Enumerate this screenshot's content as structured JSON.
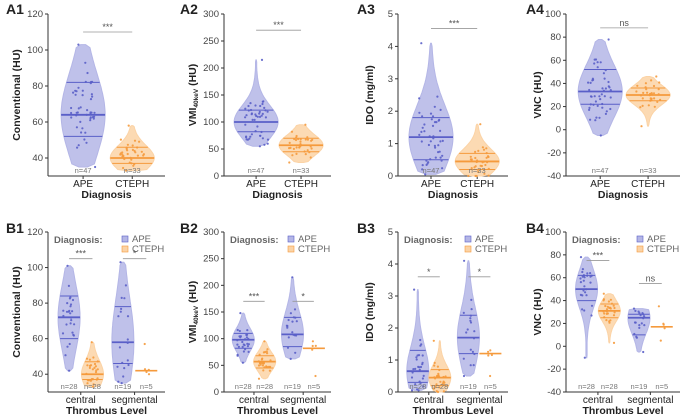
{
  "colors": {
    "ape": "#5a5fc8",
    "ape_fill": "#b4b6e6",
    "cteph": "#f59a3c",
    "cteph_fill": "#fbd3a6",
    "axis": "#333333",
    "text": "#222222",
    "sig": "#999999"
  },
  "legend": {
    "title": "Diagnosis:",
    "ape": "APE",
    "cteph": "CTEPH"
  },
  "chart_data": [
    {
      "id": "A1",
      "type": "violin",
      "ylabel": "Conventional (HU)",
      "xlabel": "Diagnosis",
      "ylim": [
        30,
        120
      ],
      "yticks": [
        40,
        60,
        80,
        100,
        120
      ],
      "categories": [
        "APE",
        "CTEPH"
      ],
      "groups": [
        {
          "label": "APE",
          "series": "ape",
          "min": 35,
          "max": 103,
          "q1": 52,
          "median": 64,
          "q3": 82,
          "n_label": "n=47"
        },
        {
          "label": "CTEPH",
          "series": "cteph",
          "min": 33,
          "max": 58,
          "q1": 37,
          "median": 40,
          "q3": 46,
          "n_label": "n=33"
        }
      ],
      "sig": [
        {
          "from": 0,
          "to": 1,
          "label": "***",
          "y": 110
        }
      ]
    },
    {
      "id": "A2",
      "type": "violin",
      "ylabel": "VMI40keV (HU)",
      "xlabel": "Diagnosis",
      "ylim": [
        0,
        300
      ],
      "yticks": [
        0,
        50,
        100,
        150,
        200,
        250,
        300
      ],
      "categories": [
        "APE",
        "CTEPH"
      ],
      "groups": [
        {
          "label": "APE",
          "series": "ape",
          "min": 55,
          "max": 215,
          "q1": 82,
          "median": 100,
          "q3": 122,
          "n_label": "n=47"
        },
        {
          "label": "CTEPH",
          "series": "cteph",
          "min": 25,
          "max": 95,
          "q1": 45,
          "median": 57,
          "q3": 70,
          "n_label": "n=33"
        }
      ],
      "sig": [
        {
          "from": 0,
          "to": 1,
          "label": "***",
          "y": 270
        }
      ]
    },
    {
      "id": "A3",
      "type": "violin",
      "ylabel": "IDO (mg/ml)",
      "xlabel": "Diagnosis",
      "ylim": [
        0,
        5
      ],
      "yticks": [
        0,
        1,
        2,
        3,
        4,
        5
      ],
      "categories": [
        "APE",
        "CTEPH"
      ],
      "groups": [
        {
          "label": "APE",
          "series": "ape",
          "min": 0.05,
          "max": 4.1,
          "q1": 0.5,
          "median": 1.2,
          "q3": 1.8,
          "n_label": "n=47"
        },
        {
          "label": "CTEPH",
          "series": "cteph",
          "min": 0.0,
          "max": 1.6,
          "q1": 0.2,
          "median": 0.45,
          "q3": 0.7,
          "n_label": "n=33"
        }
      ],
      "sig": [
        {
          "from": 0,
          "to": 1,
          "label": "***",
          "y": 4.55
        }
      ]
    },
    {
      "id": "A4",
      "type": "violin",
      "ylabel": "VNC (HU)",
      "xlabel": "Diagnosis",
      "ylim": [
        -40,
        100
      ],
      "yticks": [
        -40,
        -20,
        0,
        20,
        40,
        60,
        80,
        100
      ],
      "categories": [
        "APE",
        "CTEPH"
      ],
      "groups": [
        {
          "label": "APE",
          "series": "ape",
          "min": -5,
          "max": 78,
          "q1": 22,
          "median": 33,
          "q3": 52,
          "n_label": "n=47"
        },
        {
          "label": "CTEPH",
          "series": "cteph",
          "min": 3,
          "max": 46,
          "q1": 25,
          "median": 30,
          "q3": 36,
          "n_label": "n=33"
        }
      ],
      "sig": [
        {
          "from": 0,
          "to": 1,
          "label": "ns",
          "y": 88
        }
      ]
    },
    {
      "id": "B1",
      "type": "violin",
      "ylabel": "Conventional (HU)",
      "xlabel": "Thrombus Level",
      "ylim": [
        30,
        120
      ],
      "yticks": [
        40,
        60,
        80,
        100,
        120
      ],
      "categories": [
        "central",
        "segmental"
      ],
      "groups": [
        {
          "label": "central",
          "series": "ape",
          "min": 42,
          "max": 101,
          "q1": 60,
          "median": 72,
          "q3": 84,
          "n_label": "n=28"
        },
        {
          "label": "central",
          "series": "cteph",
          "min": 33,
          "max": 58,
          "q1": 37,
          "median": 40,
          "q3": 47,
          "n_label": "n=28"
        },
        {
          "label": "segmental",
          "series": "ape",
          "min": 35,
          "max": 103,
          "q1": 46,
          "median": 58,
          "q3": 78,
          "n_label": "n=19"
        },
        {
          "label": "segmental",
          "series": "cteph",
          "min": 40,
          "max": 57,
          "q1": 42,
          "median": 42,
          "q3": 42,
          "n_label": "n=5",
          "flat": true
        }
      ],
      "sig": [
        {
          "from": 0,
          "to": 1,
          "label": "***",
          "y": 105
        },
        {
          "from": 2,
          "to": 3,
          "label": "*",
          "y": 105
        }
      ]
    },
    {
      "id": "B2",
      "type": "violin",
      "ylabel": "VMI40keV (HU)",
      "xlabel": "Thrombus Level",
      "ylim": [
        0,
        300
      ],
      "yticks": [
        0,
        50,
        100,
        150,
        200,
        250,
        300
      ],
      "categories": [
        "central",
        "segmental"
      ],
      "groups": [
        {
          "label": "central",
          "series": "ape",
          "min": 55,
          "max": 148,
          "q1": 82,
          "median": 98,
          "q3": 110,
          "n_label": "n=28"
        },
        {
          "label": "central",
          "series": "cteph",
          "min": 25,
          "max": 95,
          "q1": 45,
          "median": 57,
          "q3": 68,
          "n_label": "n=28"
        },
        {
          "label": "segmental",
          "series": "ape",
          "min": 62,
          "max": 215,
          "q1": 85,
          "median": 108,
          "q3": 140,
          "n_label": "n=19"
        },
        {
          "label": "segmental",
          "series": "cteph",
          "min": 30,
          "max": 95,
          "q1": 80,
          "median": 82,
          "q3": 82,
          "n_label": "n=5",
          "flat": true
        }
      ],
      "sig": [
        {
          "from": 0,
          "to": 1,
          "label": "***",
          "y": 170
        },
        {
          "from": 2,
          "to": 3,
          "label": "*",
          "y": 170
        }
      ]
    },
    {
      "id": "B3",
      "type": "violin",
      "ylabel": "IDO (mg/ml)",
      "xlabel": "Thrombus Level",
      "ylim": [
        0,
        5
      ],
      "yticks": [
        0,
        1,
        2,
        3,
        4,
        5
      ],
      "categories": [
        "central",
        "segmental"
      ],
      "groups": [
        {
          "label": "central",
          "series": "ape",
          "min": 0.05,
          "max": 3.2,
          "q1": 0.3,
          "median": 0.65,
          "q3": 1.3,
          "n_label": "n=28"
        },
        {
          "label": "central",
          "series": "cteph",
          "min": 0.0,
          "max": 1.6,
          "q1": 0.2,
          "median": 0.45,
          "q3": 0.7,
          "n_label": "n=28"
        },
        {
          "label": "segmental",
          "series": "ape",
          "min": 0.5,
          "max": 4.1,
          "q1": 1.2,
          "median": 1.7,
          "q3": 2.4,
          "n_label": "n=19"
        },
        {
          "label": "segmental",
          "series": "cteph",
          "min": 0.5,
          "max": 1.3,
          "q1": 1.2,
          "median": 1.2,
          "q3": 1.2,
          "n_label": "n=5",
          "flat": true
        }
      ],
      "sig": [
        {
          "from": 0,
          "to": 1,
          "label": "*",
          "y": 3.6
        },
        {
          "from": 2,
          "to": 3,
          "label": "*",
          "y": 3.6
        }
      ]
    },
    {
      "id": "B4",
      "type": "violin",
      "ylabel": "VNC (HU)",
      "xlabel": "Thrombus Level",
      "ylim": [
        -40,
        100
      ],
      "yticks": [
        -40,
        -20,
        0,
        20,
        40,
        60,
        80,
        100
      ],
      "categories": [
        "central",
        "segmental"
      ],
      "groups": [
        {
          "label": "central",
          "series": "ape",
          "min": -10,
          "max": 78,
          "q1": 40,
          "median": 50,
          "q3": 62,
          "n_label": "n=28"
        },
        {
          "label": "central",
          "series": "cteph",
          "min": 3,
          "max": 46,
          "q1": 25,
          "median": 31,
          "q3": 37,
          "n_label": "n=28"
        },
        {
          "label": "segmental",
          "series": "ape",
          "min": -5,
          "max": 33,
          "q1": 10,
          "median": 25,
          "q3": 28,
          "n_label": "n=19"
        },
        {
          "label": "segmental",
          "series": "cteph",
          "min": 5,
          "max": 35,
          "q1": 17,
          "median": 17,
          "q3": 17,
          "n_label": "n=5",
          "flat": true
        }
      ],
      "sig": [
        {
          "from": 0,
          "to": 1,
          "label": "***",
          "y": 75
        },
        {
          "from": 2,
          "to": 3,
          "label": "ns",
          "y": 55
        }
      ]
    }
  ]
}
